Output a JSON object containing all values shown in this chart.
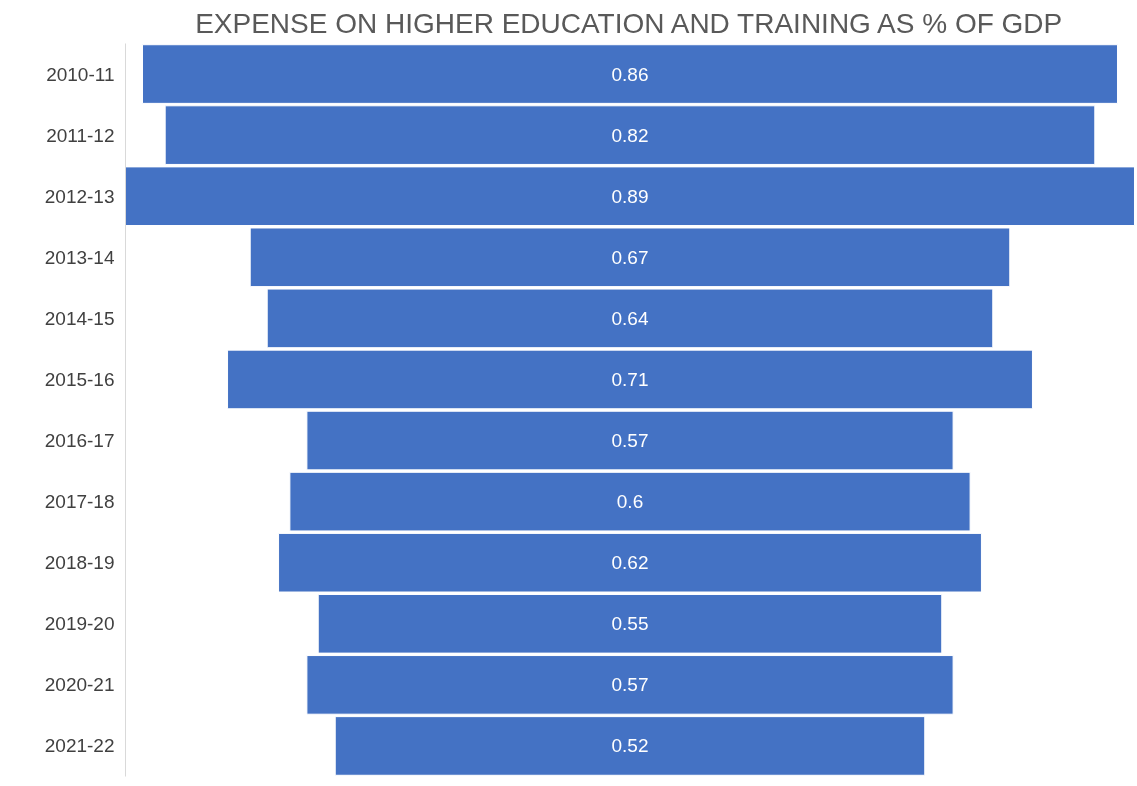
{
  "chart_data": {
    "type": "other",
    "title": "EXPENSE ON HIGHER EDUCATION AND TRAINING AS % OF GDP",
    "categories": [
      "2010-11",
      "2011-12",
      "2012-13",
      "2013-14",
      "2014-15",
      "2015-16",
      "2016-17",
      "2017-18",
      "2018-19",
      "2019-20",
      "2020-21",
      "2021-22"
    ],
    "values": [
      0.86,
      0.82,
      0.89,
      0.67,
      0.64,
      0.71,
      0.57,
      0.6,
      0.62,
      0.55,
      0.57,
      0.52
    ],
    "color": "#4472c4",
    "data_labels": true
  }
}
